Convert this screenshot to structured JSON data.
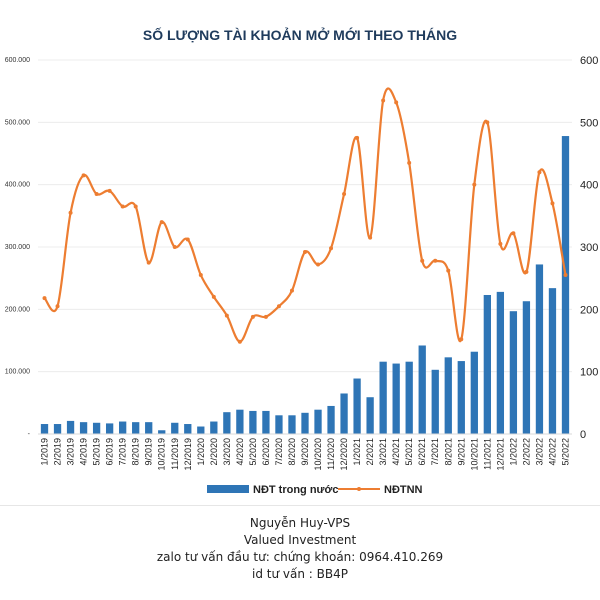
{
  "chart_data": {
    "type": "bar+line",
    "title": "SỐ LƯỢNG TÀI KHOẢN MỞ MỚI THEO THÁNG",
    "categories": [
      "1/2019",
      "2/2019",
      "3/2019",
      "4/2019",
      "5/2019",
      "6/2019",
      "7/2019",
      "8/2019",
      "9/2019",
      "10/2019",
      "11/2019",
      "12/2019",
      "1/2020",
      "2/2020",
      "3/2020",
      "4/2020",
      "5/2020",
      "6/2020",
      "7/2020",
      "8/2020",
      "9/2020",
      "10/2020",
      "11/2020",
      "12/2020",
      "1/2021",
      "2/2021",
      "3/2021",
      "4/2021",
      "5/2021",
      "6/2021",
      "7/2021",
      "8/2021",
      "9/2021",
      "10/2021",
      "11/2021",
      "12/2021",
      "1/2022",
      "2/2022",
      "3/2022",
      "4/2022",
      "5/2022"
    ],
    "y_left": {
      "ticks": [
        "600.000",
        "500.000",
        "400.000",
        "300.000",
        "200.000",
        "100.000",
        "-"
      ],
      "range": [
        0,
        600000
      ]
    },
    "y_right": {
      "ticks": [
        "600",
        "500",
        "400",
        "300",
        "200",
        "100",
        "0"
      ],
      "range": [
        0,
        600
      ]
    },
    "series": [
      {
        "name": "NĐT trong nước",
        "type": "bar",
        "axis": "left",
        "color": "#2e75b6",
        "values": [
          16000,
          16000,
          21000,
          19000,
          18000,
          17000,
          20000,
          19000,
          19000,
          6000,
          18000,
          16000,
          12000,
          20000,
          35000,
          39000,
          37000,
          37000,
          30000,
          30000,
          34000,
          39000,
          45000,
          65000,
          89000,
          59000,
          116000,
          113000,
          116000,
          142000,
          103000,
          123000,
          117000,
          132000,
          223000,
          228000,
          197000,
          213000,
          272000,
          234000,
          478000
        ]
      },
      {
        "name": "NĐTNN",
        "type": "line",
        "axis": "right",
        "color": "#ed7d31",
        "values": [
          218,
          205,
          355,
          415,
          385,
          390,
          365,
          365,
          275,
          340,
          300,
          312,
          255,
          220,
          190,
          148,
          188,
          188,
          205,
          230,
          292,
          272,
          298,
          385,
          475,
          315,
          535,
          532,
          435,
          278,
          278,
          262,
          152,
          400,
          500,
          305,
          322,
          260,
          420,
          370,
          255
        ]
      }
    ],
    "legend": {
      "placement": "bottom"
    }
  },
  "footer": {
    "line1": "Nguyễn Huy-VPS",
    "line2": "Valued Investment",
    "line3": "zalo tư vấn đầu tư: chứng khoán: 0964.410.269",
    "line4": "id tư vấn : BB4P"
  }
}
